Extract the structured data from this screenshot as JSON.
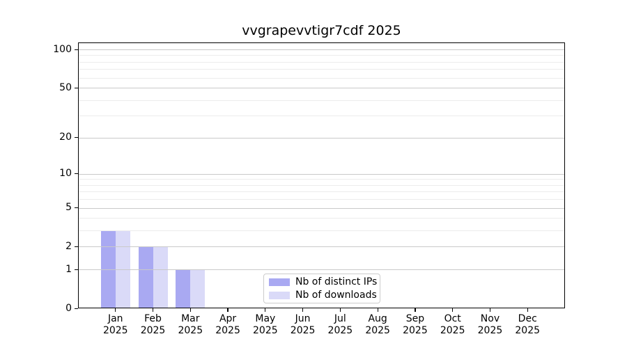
{
  "chart_data": {
    "type": "bar",
    "title": "vvgrapevvtigr7cdf 2025",
    "x_year": "2025",
    "categories": [
      "Jan",
      "Feb",
      "Mar",
      "Apr",
      "May",
      "Jun",
      "Jul",
      "Aug",
      "Sep",
      "Oct",
      "Nov",
      "Dec"
    ],
    "series": [
      {
        "name": "Nb of distinct IPs",
        "color": "#a9a9f2",
        "values": [
          3,
          2,
          1,
          0,
          0,
          0,
          0,
          0,
          0,
          0,
          0,
          0
        ]
      },
      {
        "name": "Nb of downloads",
        "color": "#dadaf8",
        "values": [
          3,
          2,
          1,
          0,
          0,
          0,
          0,
          0,
          0,
          0,
          0,
          0
        ]
      }
    ],
    "xlabel": "",
    "ylabel": "",
    "yscale": "log1p",
    "ylim": [
      0,
      113.4
    ],
    "yticks_major": [
      0,
      1,
      2,
      5,
      10,
      20,
      50,
      100
    ],
    "yticks_minor": [
      3,
      4,
      6,
      7,
      8,
      9,
      30,
      40,
      60,
      70,
      80,
      90
    ],
    "grid": "both",
    "legend_position": "lower center",
    "colors": {
      "axis": "#000000",
      "grid_major": "#c9c9c9",
      "grid_minor": "#ececec",
      "text": "#000000",
      "background": "#ffffff"
    }
  }
}
